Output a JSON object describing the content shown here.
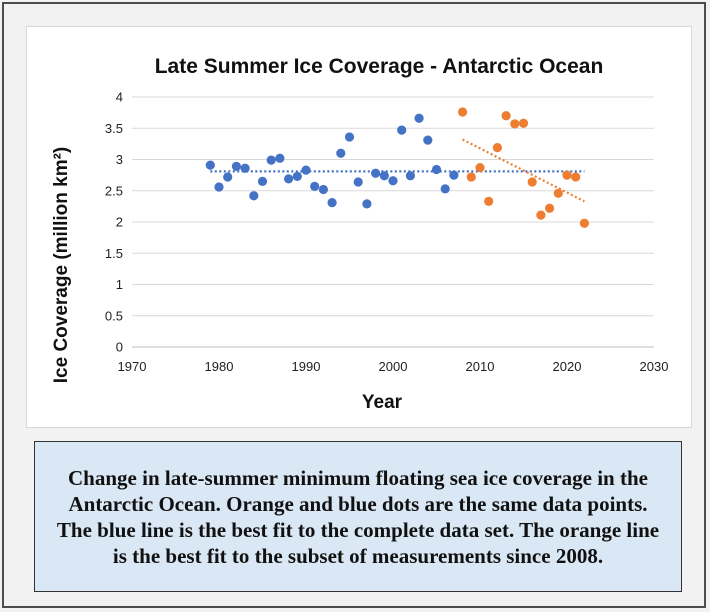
{
  "caption": "Change in late-summer minimum floating sea ice coverage in the Antarctic Ocean.  Orange and blue dots are the same data points.  The blue line is the best fit to the complete data set.  The orange line is the best fit to the subset of measurements since 2008.",
  "chart_data": {
    "type": "scatter",
    "title": "Late Summer Ice Coverage - Antarctic Ocean",
    "xlabel": "Year",
    "ylabel": "Ice Coverage (million km²)",
    "xlim": [
      1970,
      2030
    ],
    "ylim": [
      0,
      4
    ],
    "xticks": [
      1970,
      1980,
      1990,
      2000,
      2010,
      2020,
      2030
    ],
    "yticks": [
      0,
      0.5,
      1,
      1.5,
      2,
      2.5,
      3,
      3.5,
      4
    ],
    "xtick_labels": [
      "1970",
      "1980",
      "1990",
      "2000",
      "2010",
      "2020",
      "2030"
    ],
    "ytick_labels": [
      "0",
      "0.5",
      "1",
      "1.5",
      "2",
      "2.5",
      "3",
      "3.5",
      "4"
    ],
    "grid": "horizontal",
    "legend": "none",
    "series": [
      {
        "color": "#4472c4",
        "x": [
          1979,
          1980,
          1981,
          1982,
          1983,
          1984,
          1985,
          1986,
          1987,
          1988,
          1989,
          1990,
          1991,
          1992,
          1993,
          1994,
          1995,
          1996,
          1997,
          1998,
          1999,
          2000,
          2001,
          2002,
          2003,
          2004,
          2005,
          2006,
          2007
        ],
        "y": [
          2.91,
          2.56,
          2.72,
          2.89,
          2.86,
          2.42,
          2.65,
          2.99,
          3.02,
          2.69,
          2.73,
          2.83,
          2.57,
          2.52,
          2.31,
          3.1,
          3.36,
          2.64,
          2.29,
          2.78,
          2.74,
          2.66,
          3.47,
          2.74,
          3.66,
          3.31,
          2.84,
          2.53,
          2.75
        ]
      },
      {
        "color": "#ed7d31",
        "x": [
          2008,
          2009,
          2010,
          2011,
          2012,
          2013,
          2014,
          2015,
          2016,
          2017,
          2018,
          2019,
          2020,
          2021,
          2022
        ],
        "y": [
          3.76,
          2.72,
          2.87,
          2.33,
          3.19,
          3.7,
          3.57,
          3.58,
          2.64,
          2.11,
          2.22,
          2.46,
          2.75,
          2.72,
          1.98
        ]
      }
    ],
    "trendlines": [
      {
        "color": "#4472c4",
        "x": [
          1979,
          2022
        ],
        "y": [
          2.81,
          2.81
        ]
      },
      {
        "color": "#ed7d31",
        "x": [
          2008,
          2022
        ],
        "y": [
          3.32,
          2.33
        ]
      }
    ]
  }
}
